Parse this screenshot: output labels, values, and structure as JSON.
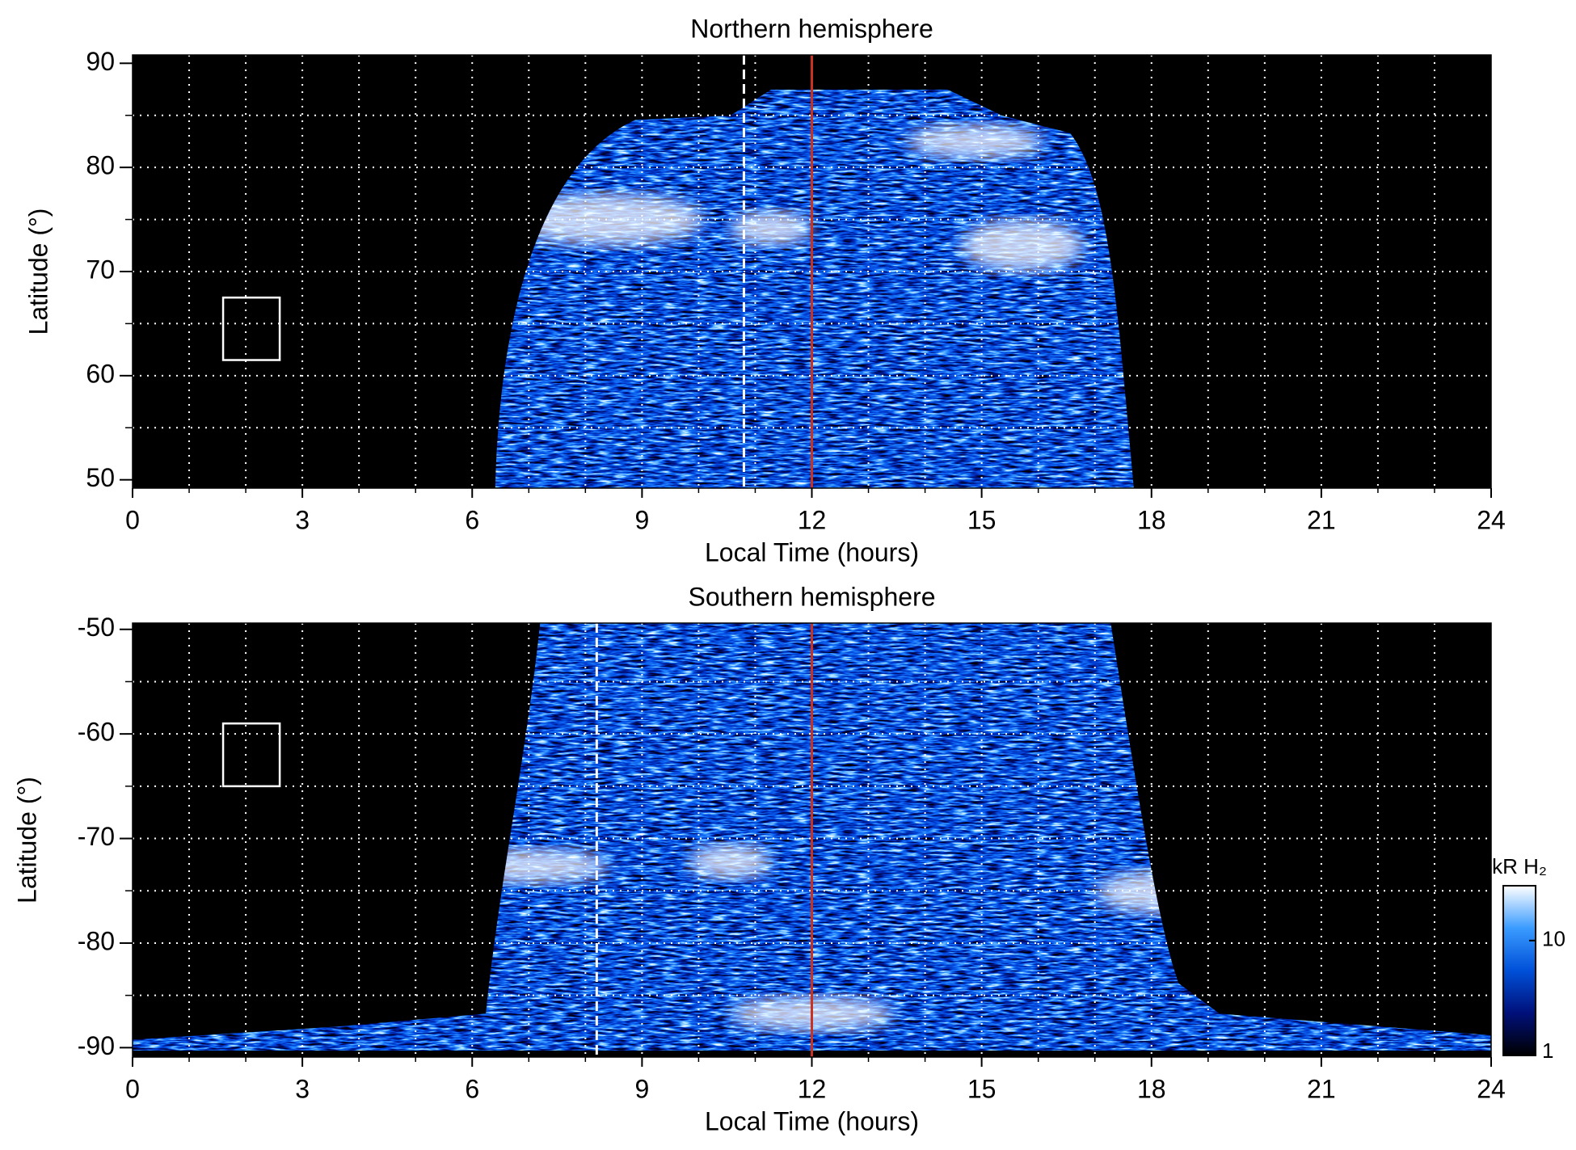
{
  "chart_data": [
    {
      "type": "heatmap",
      "title": "Northern hemisphere",
      "x_label": "Local Time (hours)",
      "y_label": "Latitude (°)",
      "xlim": [
        0,
        24
      ],
      "xticks": [
        0,
        3,
        6,
        9,
        12,
        15,
        18,
        21,
        24
      ],
      "ylim": [
        49.2,
        90.8
      ],
      "yticks": [
        50,
        60,
        70,
        80,
        90
      ],
      "xgrid": [
        1,
        2,
        3,
        4,
        5,
        6,
        7,
        8,
        9,
        10,
        11,
        13,
        14,
        15,
        16,
        17,
        18,
        19,
        20,
        21,
        22,
        23
      ],
      "ygrid": [
        55,
        60,
        65,
        70,
        75,
        80,
        85
      ],
      "grid": true,
      "grid_color": "#ffffff",
      "vlines": [
        {
          "x": 10.8,
          "color": "#ffffff",
          "style": "dashed"
        },
        {
          "x": 12,
          "color": "#c8321e",
          "style": "solid"
        }
      ],
      "box": {
        "xlim": [
          1.6,
          2.6
        ],
        "ylim": [
          61.5,
          67.5
        ]
      },
      "colormap": [
        "#000000",
        "#00107a",
        "#0050d8",
        "#3a9bff",
        "#ffffff"
      ]
    },
    {
      "type": "heatmap",
      "title": "Southern hemisphere",
      "x_label": "Local Time (hours)",
      "y_label": "Latitude (°)",
      "xlim": [
        0,
        24
      ],
      "xticks": [
        0,
        3,
        6,
        9,
        12,
        15,
        18,
        21,
        24
      ],
      "ylim": [
        -90.9,
        -49.4
      ],
      "yticks": [
        -90,
        -80,
        -70,
        -60,
        -50
      ],
      "xgrid": [
        1,
        2,
        3,
        4,
        5,
        6,
        7,
        8,
        9,
        10,
        11,
        13,
        14,
        15,
        16,
        17,
        18,
        19,
        20,
        21,
        22,
        23
      ],
      "ygrid": [
        -85,
        -80,
        -75,
        -70,
        -65,
        -60,
        -55
      ],
      "grid": true,
      "grid_color": "#ffffff",
      "vlines": [
        {
          "x": 8.2,
          "color": "#ffffff",
          "style": "dashed"
        },
        {
          "x": 12,
          "color": "#c8321e",
          "style": "solid"
        }
      ],
      "box": {
        "xlim": [
          1.6,
          2.6
        ],
        "ylim": [
          -65,
          -59
        ]
      },
      "colormap": [
        "#000000",
        "#00107a",
        "#0050d8",
        "#3a9bff",
        "#ffffff"
      ],
      "colorbar": {
        "label": "kR H₂",
        "scale": "log",
        "lim": [
          1,
          30
        ],
        "ticks": [
          1,
          10
        ]
      }
    }
  ]
}
